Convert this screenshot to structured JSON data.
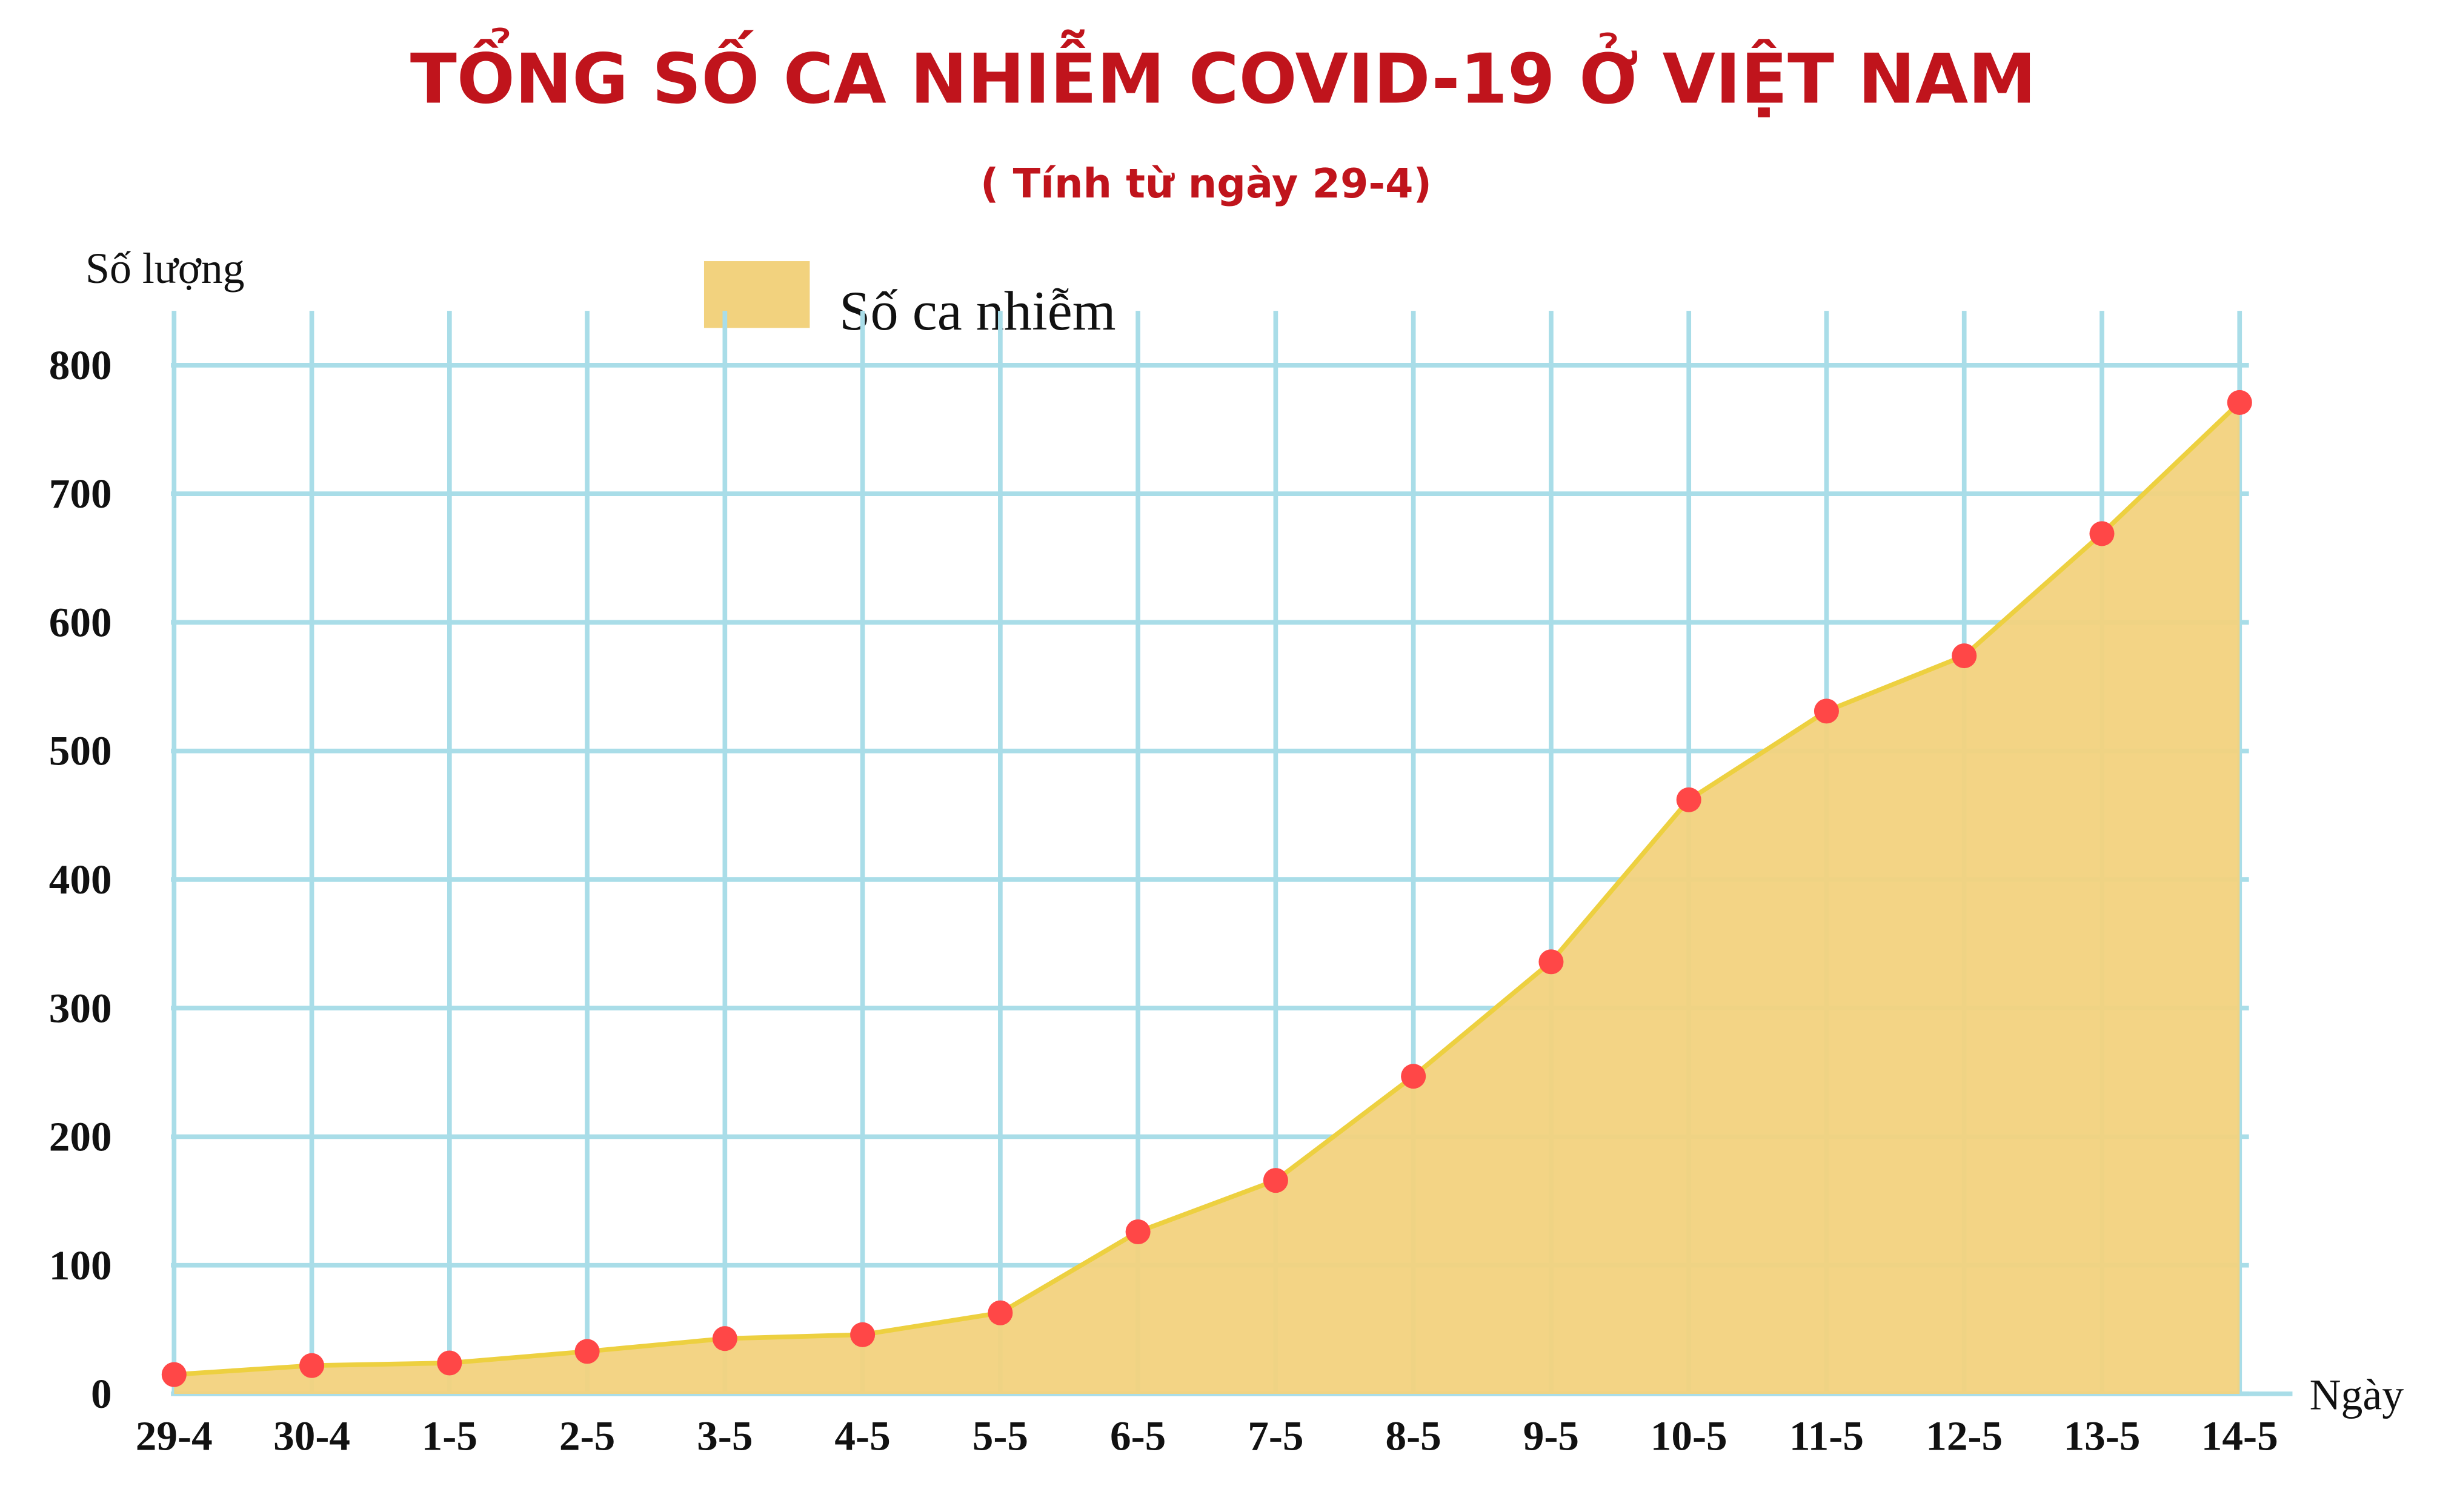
{
  "chart_data": {
    "type": "area",
    "title": "TỔNG SỐ CA NHIỄM COVID-19 Ở VIỆT NAM",
    "subtitle": "( Tính từ ngày 29-4)",
    "y_label": "Số lượng",
    "x_label": "Ngày",
    "categories": [
      "29-4",
      "30-4",
      "1-5",
      "2-5",
      "3-5",
      "4-5",
      "5-5",
      "6-5",
      "7-5",
      "8-5",
      "9-5",
      "10-5",
      "11-5",
      "12-5",
      "13-5",
      "14-5"
    ],
    "series": [
      {
        "name": "Số ca nhiễm",
        "color": "#f2d27e",
        "values": [
          15,
          22,
          24,
          33,
          43,
          46,
          63,
          126,
          166,
          247,
          336,
          462,
          531,
          574,
          669,
          771
        ]
      }
    ],
    "ylim": [
      0,
      800
    ],
    "yticks": [
      0,
      100,
      200,
      300,
      400,
      500,
      600,
      700,
      800
    ],
    "grid": true,
    "line_color": "#edd040",
    "marker_color": "#ff4747",
    "grid_color": "#a9dde8",
    "legend": "top"
  }
}
